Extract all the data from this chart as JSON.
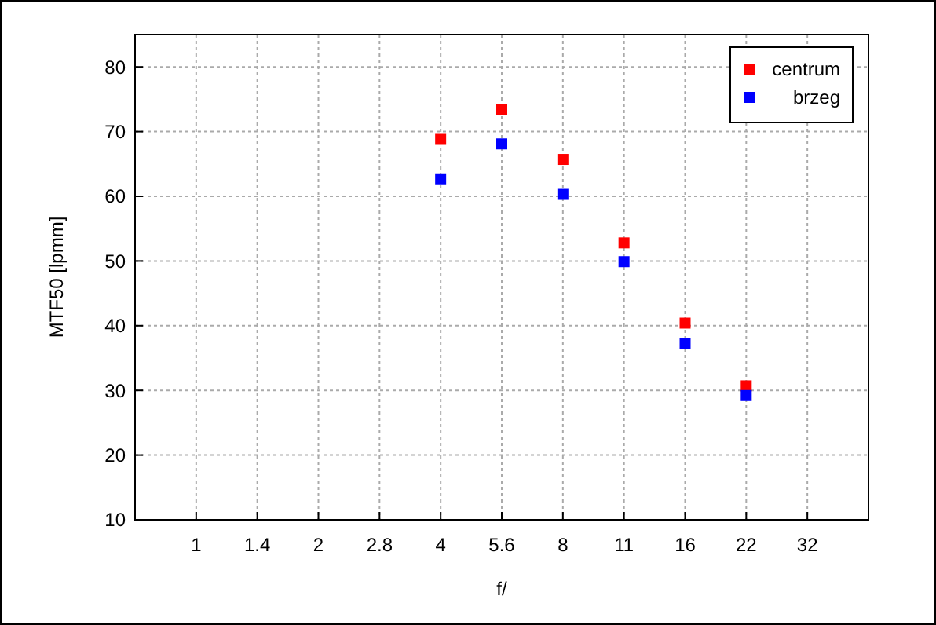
{
  "chart_data": {
    "type": "scatter",
    "xlabel": "f/",
    "ylabel": "MTF50 [lpmm]",
    "categories": [
      "1",
      "1.4",
      "2",
      "2.8",
      "4",
      "5.6",
      "8",
      "11",
      "16",
      "22",
      "32"
    ],
    "series": [
      {
        "name": "centrum",
        "color": "#ff0000",
        "values": [
          null,
          null,
          null,
          null,
          68.8,
          73.4,
          65.7,
          52.8,
          40.4,
          30.7,
          null
        ]
      },
      {
        "name": "brzeg",
        "color": "#0000ff",
        "values": [
          null,
          null,
          null,
          null,
          62.7,
          68.1,
          60.3,
          49.9,
          37.2,
          29.2,
          null
        ]
      }
    ],
    "ylim": [
      10,
      85
    ],
    "yticks": [
      10,
      20,
      30,
      40,
      50,
      60,
      70,
      80
    ],
    "grid": true,
    "legend": "top right",
    "marker": "square"
  }
}
